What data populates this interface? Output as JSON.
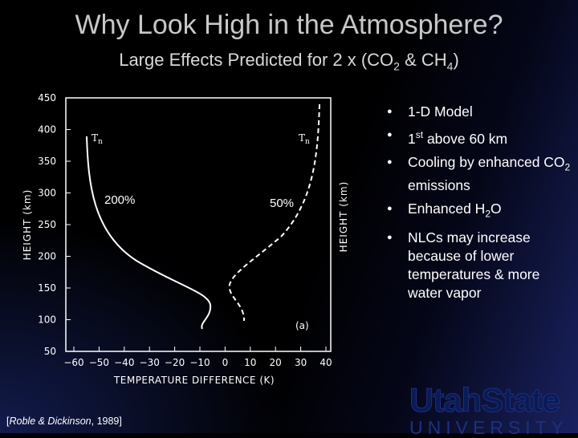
{
  "title": "Why Look High in the Atmosphere?",
  "subtitle": {
    "prefix": "Large Effects Predicted for 2 x (CO",
    "sub1": "2",
    "middle": " & CH",
    "sub2": "4",
    "suffix": ")"
  },
  "figure": {
    "left_curve_label": "200%",
    "right_curve_label": "50%",
    "y_axis_label": "HEIGHT (km)",
    "y_axis_label_right": "HEIGHT (km)",
    "x_axis_label": "TEMPERATURE DIFFERENCE (K)",
    "y_ticks": [
      "450",
      "400",
      "350",
      "300",
      "250",
      "200",
      "150",
      "100",
      "50"
    ],
    "x_ticks": [
      "−60",
      "−50",
      "−40",
      "−30",
      "−20",
      "−10",
      "0",
      "10",
      "20",
      "30",
      "40"
    ],
    "tn_label": "T",
    "tn_sub": "n",
    "panel_label": "(a)"
  },
  "bullets": [
    {
      "parts": [
        {
          "t": "1-D Model"
        }
      ]
    },
    {
      "parts": [
        {
          "t": "1"
        },
        {
          "t": "st",
          "sup": true
        },
        {
          "t": " above 60 km"
        }
      ]
    },
    {
      "parts": [
        {
          "t": "Cooling by enhanced CO"
        },
        {
          "t": "2",
          "sub": true
        },
        {
          "t": " emissions"
        }
      ]
    },
    {
      "parts": [
        {
          "t": "Enhanced H"
        },
        {
          "t": "2",
          "sub": true
        },
        {
          "t": "O"
        }
      ]
    },
    {
      "parts": [
        {
          "t": "NLCs may increase because of lower temperatures & more water vapor"
        }
      ]
    }
  ],
  "citation": {
    "open": "[",
    "authors": "Roble & Dickinson",
    "year": ", 1989]"
  },
  "logo": {
    "line1": "UtahState",
    "line2": "UNIVERSITY"
  }
}
